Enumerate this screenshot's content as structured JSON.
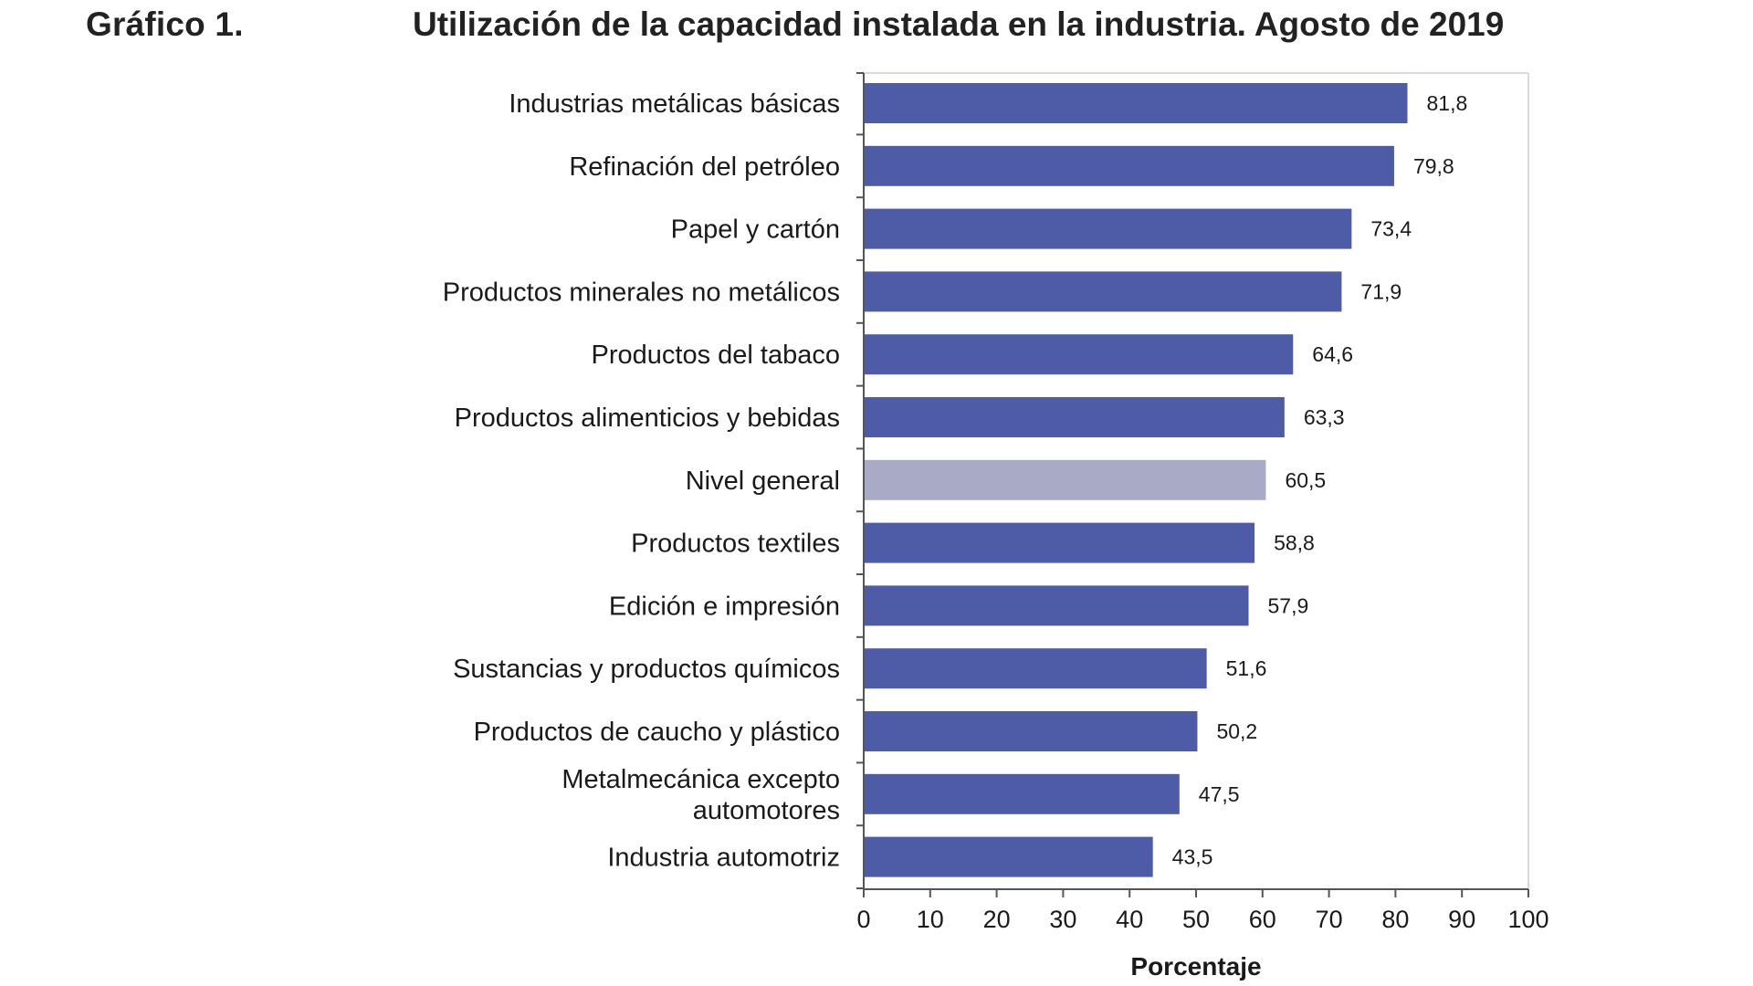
{
  "header": {
    "figure_label": "Gráfico 1.",
    "title": "Utilización de la capacidad instalada en la industria. Agosto de 2019"
  },
  "chart_data": {
    "type": "bar",
    "orientation": "horizontal",
    "title": "Utilización de la capacidad instalada en la industria. Agosto de 2019",
    "xlabel": "Porcentaje",
    "ylabel": "",
    "xlim": [
      0,
      100
    ],
    "x_ticks": [
      "0",
      "10",
      "20",
      "30",
      "40",
      "50",
      "60",
      "70",
      "80",
      "90",
      "100"
    ],
    "grid": false,
    "categories": [
      [
        "Industrias metálicas básicas"
      ],
      [
        "Refinación del petróleo"
      ],
      [
        "Papel y cartón"
      ],
      [
        "Productos minerales no metálicos"
      ],
      [
        "Productos del tabaco"
      ],
      [
        "Productos alimenticios y bebidas"
      ],
      [
        "Nivel general"
      ],
      [
        "Productos textiles"
      ],
      [
        "Edición e impresión"
      ],
      [
        "Sustancias y productos químicos"
      ],
      [
        "Productos de caucho y plástico"
      ],
      [
        "Metalmecánica excepto",
        "automotores"
      ],
      [
        "Industria automotriz"
      ]
    ],
    "values": [
      81.8,
      79.8,
      73.4,
      71.9,
      64.6,
      63.3,
      60.5,
      58.8,
      57.9,
      51.6,
      50.2,
      47.5,
      43.5
    ],
    "value_labels": [
      "81,8",
      "79,8",
      "73,4",
      "71,9",
      "64,6",
      "63,3",
      "60,5",
      "58,8",
      "57,9",
      "51,6",
      "50,2",
      "47,5",
      "43,5"
    ],
    "highlight_category": "Nivel general",
    "colors": {
      "bar": "#4e5ba6",
      "highlight": "#a9aac6",
      "axis": "#555555",
      "frame": "#d9d9d9"
    }
  }
}
